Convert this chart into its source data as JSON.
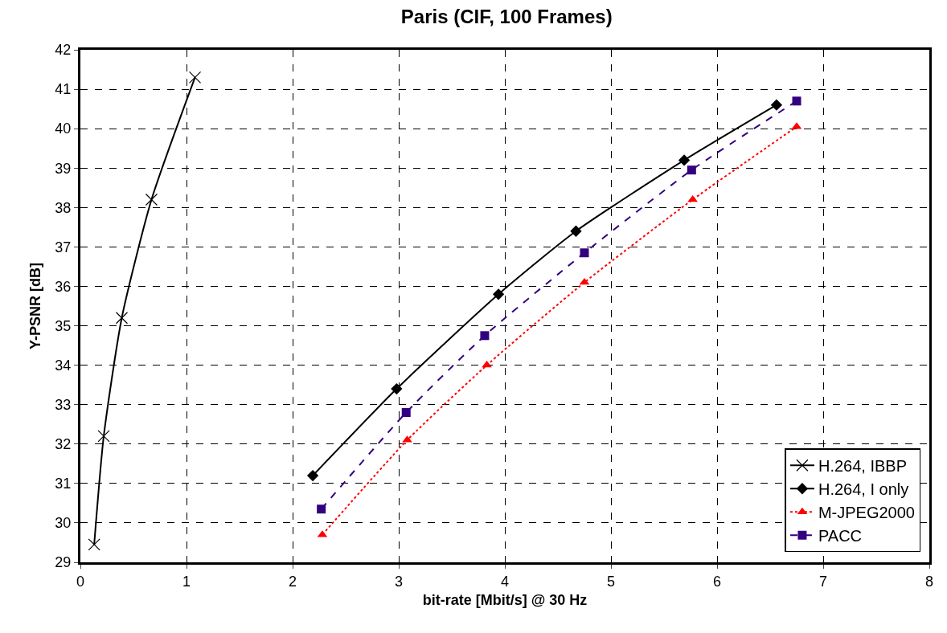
{
  "chart_data": {
    "type": "line",
    "title": "Paris (CIF, 100 Frames)",
    "xlabel": "bit-rate [Mbit/s] @ 30 Hz",
    "ylabel": "Y-PSNR [dB]",
    "xlim": [
      0,
      8
    ],
    "xticks": [
      0,
      1,
      2,
      3,
      4,
      5,
      6,
      7,
      8
    ],
    "ylim": [
      29,
      42
    ],
    "yticks": [
      29,
      30,
      31,
      32,
      33,
      34,
      35,
      36,
      37,
      38,
      39,
      40,
      41,
      42
    ],
    "grid": true,
    "legend": "bottom right",
    "series": [
      {
        "name": "H.264, IBBP",
        "color": "#000000",
        "marker": "cross",
        "line_style": "solid",
        "x": [
          0.13,
          0.22,
          0.39,
          0.67,
          1.08
        ],
        "values": [
          29.45,
          32.2,
          35.2,
          38.2,
          41.3
        ]
      },
      {
        "name": "H.264, I only",
        "color": "#000000",
        "marker": "diamond",
        "line_style": "solid",
        "x": [
          2.19,
          2.98,
          3.94,
          4.67,
          5.69,
          6.56
        ],
        "values": [
          31.2,
          33.4,
          35.8,
          37.4,
          39.2,
          40.6
        ]
      },
      {
        "name": "M-JPEG2000",
        "color": "#ff0000",
        "marker": "triangle",
        "line_style": "dotted",
        "x": [
          2.28,
          3.08,
          3.83,
          4.75,
          5.77,
          6.75
        ],
        "values": [
          29.7,
          32.1,
          34.0,
          36.1,
          38.2,
          40.05
        ]
      },
      {
        "name": "PACC",
        "color": "#330080",
        "marker": "square",
        "line_style": "dashed",
        "x": [
          2.27,
          3.07,
          3.81,
          4.75,
          5.76,
          6.75
        ],
        "values": [
          30.35,
          32.8,
          34.75,
          36.85,
          38.95,
          40.7
        ]
      }
    ]
  }
}
